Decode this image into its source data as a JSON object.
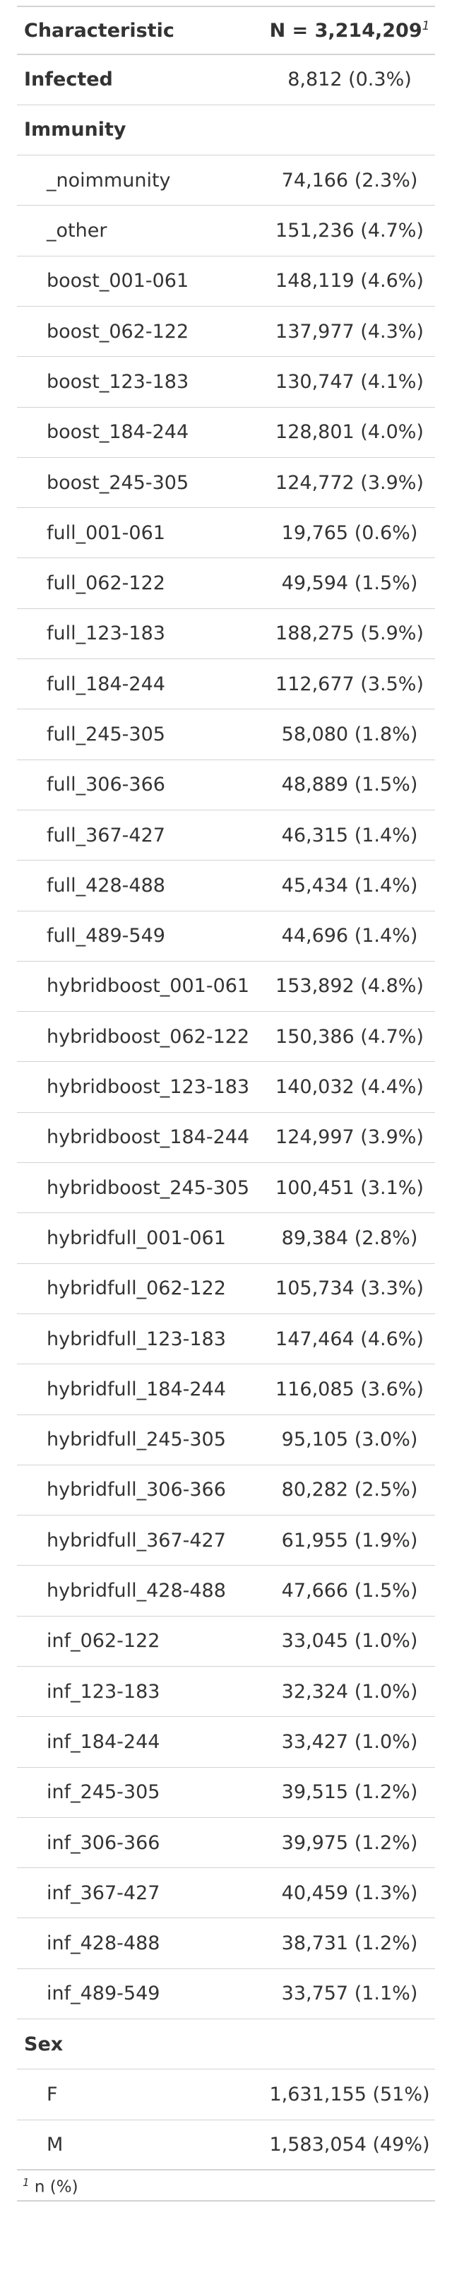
{
  "header": {
    "characteristic": "Characteristic",
    "n_label": "N = 3,214,209",
    "n_footnote_mark": "1"
  },
  "rows": [
    {
      "label": "Infected",
      "value": "8,812 (0.3%)",
      "level": "top"
    },
    {
      "label": "Immunity",
      "value": "",
      "level": "group"
    },
    {
      "label": "_noimmunity",
      "value": "74,166 (2.3%)",
      "level": "sub"
    },
    {
      "label": "_other",
      "value": "151,236 (4.7%)",
      "level": "sub"
    },
    {
      "label": "boost_001-061",
      "value": "148,119 (4.6%)",
      "level": "sub"
    },
    {
      "label": "boost_062-122",
      "value": "137,977 (4.3%)",
      "level": "sub"
    },
    {
      "label": "boost_123-183",
      "value": "130,747 (4.1%)",
      "level": "sub"
    },
    {
      "label": "boost_184-244",
      "value": "128,801 (4.0%)",
      "level": "sub"
    },
    {
      "label": "boost_245-305",
      "value": "124,772 (3.9%)",
      "level": "sub"
    },
    {
      "label": "full_001-061",
      "value": "19,765 (0.6%)",
      "level": "sub"
    },
    {
      "label": "full_062-122",
      "value": "49,594 (1.5%)",
      "level": "sub"
    },
    {
      "label": "full_123-183",
      "value": "188,275 (5.9%)",
      "level": "sub"
    },
    {
      "label": "full_184-244",
      "value": "112,677 (3.5%)",
      "level": "sub"
    },
    {
      "label": "full_245-305",
      "value": "58,080 (1.8%)",
      "level": "sub"
    },
    {
      "label": "full_306-366",
      "value": "48,889 (1.5%)",
      "level": "sub"
    },
    {
      "label": "full_367-427",
      "value": "46,315 (1.4%)",
      "level": "sub"
    },
    {
      "label": "full_428-488",
      "value": "45,434 (1.4%)",
      "level": "sub"
    },
    {
      "label": "full_489-549",
      "value": "44,696 (1.4%)",
      "level": "sub"
    },
    {
      "label": "hybridboost_001-061",
      "value": "153,892 (4.8%)",
      "level": "sub"
    },
    {
      "label": "hybridboost_062-122",
      "value": "150,386 (4.7%)",
      "level": "sub"
    },
    {
      "label": "hybridboost_123-183",
      "value": "140,032 (4.4%)",
      "level": "sub"
    },
    {
      "label": "hybridboost_184-244",
      "value": "124,997 (3.9%)",
      "level": "sub"
    },
    {
      "label": "hybridboost_245-305",
      "value": "100,451 (3.1%)",
      "level": "sub"
    },
    {
      "label": "hybridfull_001-061",
      "value": "89,384 (2.8%)",
      "level": "sub"
    },
    {
      "label": "hybridfull_062-122",
      "value": "105,734 (3.3%)",
      "level": "sub"
    },
    {
      "label": "hybridfull_123-183",
      "value": "147,464 (4.6%)",
      "level": "sub"
    },
    {
      "label": "hybridfull_184-244",
      "value": "116,085 (3.6%)",
      "level": "sub"
    },
    {
      "label": "hybridfull_245-305",
      "value": "95,105 (3.0%)",
      "level": "sub"
    },
    {
      "label": "hybridfull_306-366",
      "value": "80,282 (2.5%)",
      "level": "sub"
    },
    {
      "label": "hybridfull_367-427",
      "value": "61,955 (1.9%)",
      "level": "sub"
    },
    {
      "label": "hybridfull_428-488",
      "value": "47,666 (1.5%)",
      "level": "sub"
    },
    {
      "label": "inf_062-122",
      "value": "33,045 (1.0%)",
      "level": "sub"
    },
    {
      "label": "inf_123-183",
      "value": "32,324 (1.0%)",
      "level": "sub"
    },
    {
      "label": "inf_184-244",
      "value": "33,427 (1.0%)",
      "level": "sub"
    },
    {
      "label": "inf_245-305",
      "value": "39,515 (1.2%)",
      "level": "sub"
    },
    {
      "label": "inf_306-366",
      "value": "39,975 (1.2%)",
      "level": "sub"
    },
    {
      "label": "inf_367-427",
      "value": "40,459 (1.3%)",
      "level": "sub"
    },
    {
      "label": "inf_428-488",
      "value": "38,731 (1.2%)",
      "level": "sub"
    },
    {
      "label": "inf_489-549",
      "value": "33,757 (1.1%)",
      "level": "sub"
    },
    {
      "label": "Sex",
      "value": "",
      "level": "group"
    },
    {
      "label": "F",
      "value": "1,631,155 (51%)",
      "level": "sub"
    },
    {
      "label": "M",
      "value": "1,583,054 (49%)",
      "level": "sub"
    }
  ],
  "footnote": {
    "mark": "1",
    "text": "n (%)"
  }
}
